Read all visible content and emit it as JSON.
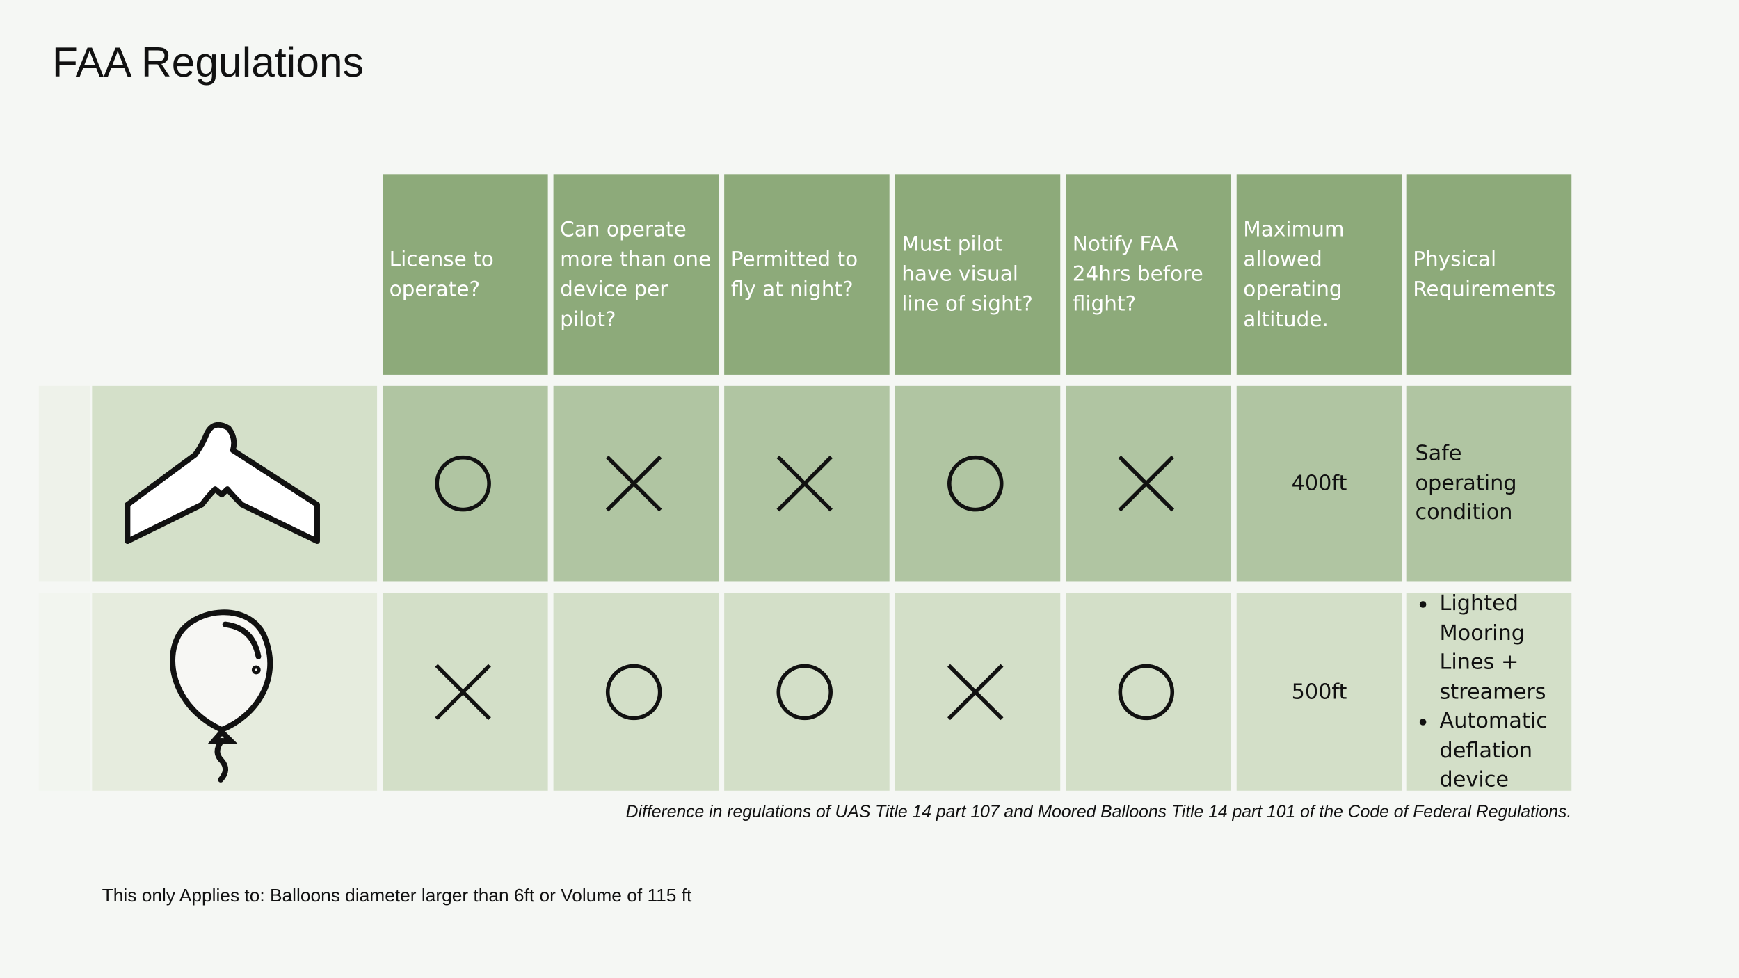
{
  "title": "FAA Regulations",
  "table": {
    "headers": [
      "License to operate?",
      "Can operate more than one device per pilot?",
      "Permitted to fly at night?",
      "Must pilot have visual line of sight?",
      "Notify FAA 24hrs before flight?",
      "Maximum allowed operating altitude.",
      "Physical Requirements"
    ],
    "rows": [
      {
        "altitude": "400ft",
        "physical": [
          "Safe operating condition"
        ]
      },
      {
        "altitude": "500ft",
        "physical": [
          "Lighted Mooring Lines + streamers",
          "Automatic deflation device"
        ]
      }
    ]
  },
  "caption": "Difference in regulations of UAS Title 14 part 107 and Moored Balloons Title 14 part 101 of the Code of Federal Regulations.",
  "footnote": "This only Applies to:  Balloons  diameter larger than 6ft or Volume of 115 ft"
}
